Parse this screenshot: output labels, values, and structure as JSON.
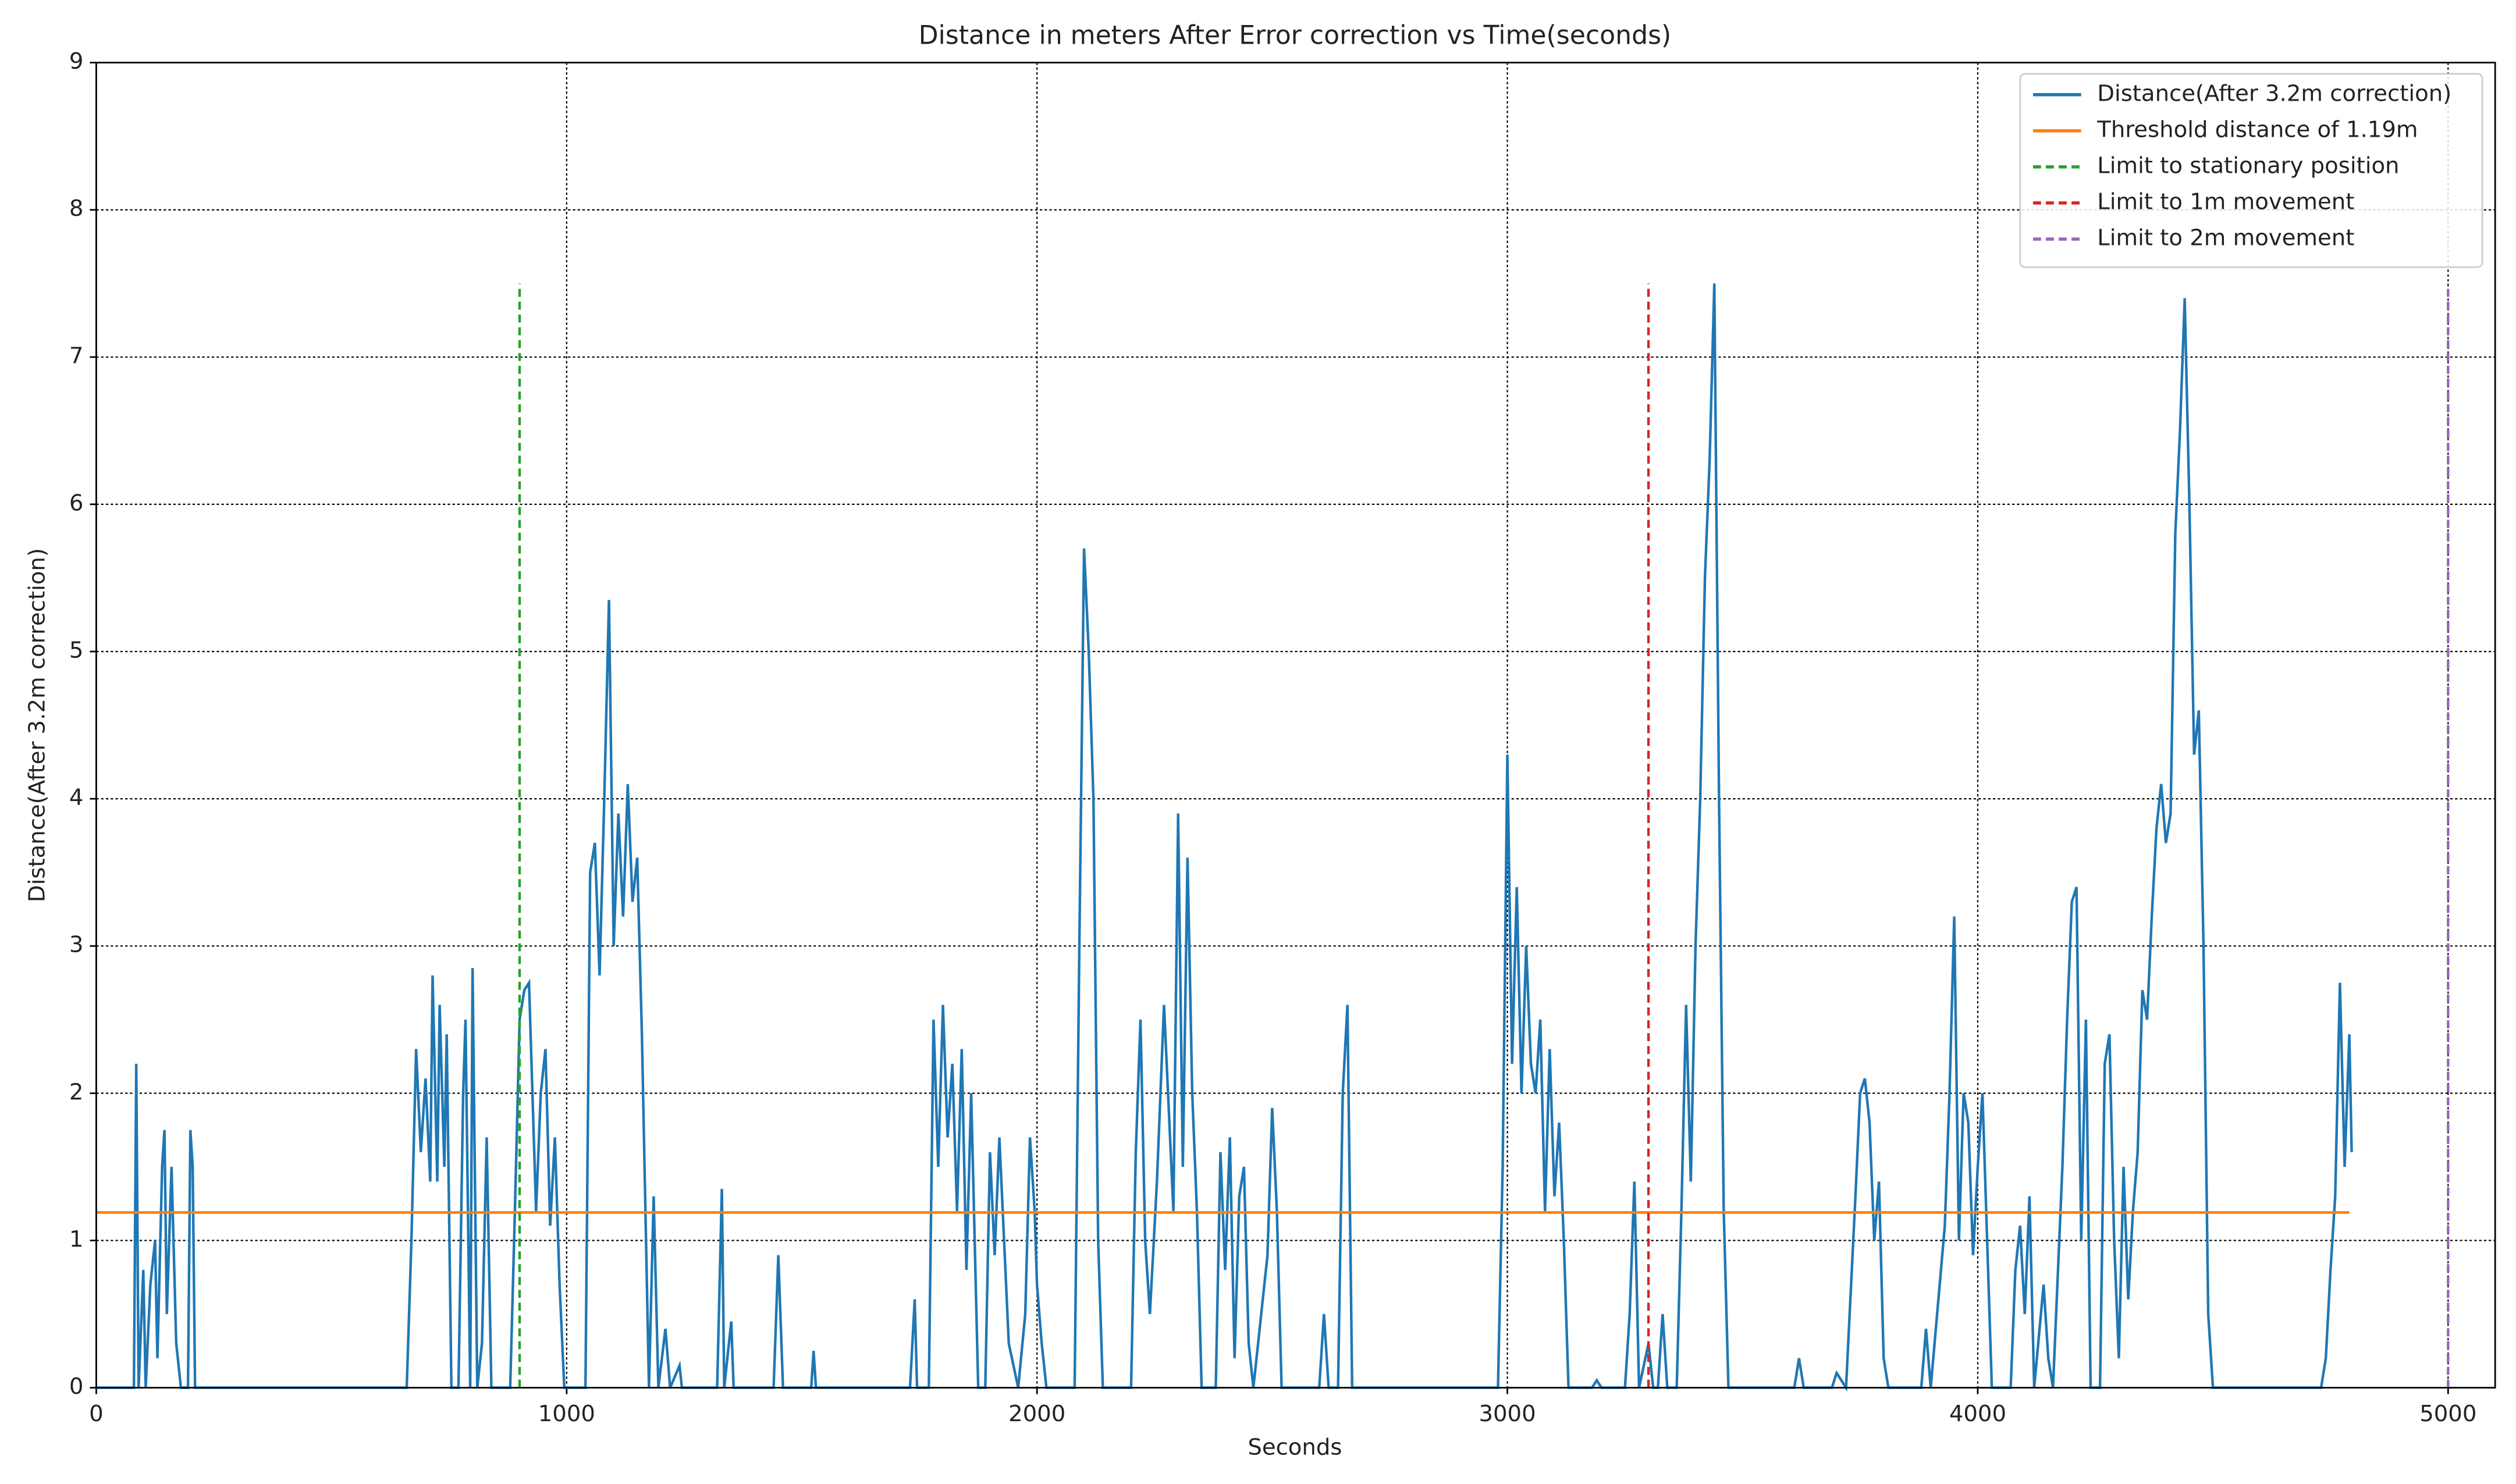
{
  "chart_data": {
    "type": "line",
    "title": "Distance in meters After Error correction vs Time(seconds)",
    "xlabel": "Seconds",
    "ylabel": "Distance(After 3.2m correction)",
    "xlim": [
      0,
      5100
    ],
    "ylim": [
      0,
      9
    ],
    "xticks": [
      0,
      1000,
      2000,
      3000,
      4000,
      5000
    ],
    "yticks": [
      0,
      1,
      2,
      3,
      4,
      5,
      6,
      7,
      8,
      9
    ],
    "grid": true,
    "legend": "upper right",
    "series": [
      {
        "name": "Distance(After 3.2m correction)",
        "color": "#1f77b4",
        "dash": false,
        "x": [
          0,
          80,
          85,
          90,
          100,
          105,
          115,
          125,
          130,
          140,
          145,
          150,
          160,
          170,
          180,
          195,
          200,
          205,
          210,
          660,
          670,
          680,
          690,
          700,
          710,
          715,
          725,
          730,
          740,
          745,
          755,
          770,
          780,
          785,
          795,
          800,
          810,
          820,
          830,
          840,
          860,
          880,
          890,
          900,
          910,
          920,
          935,
          945,
          955,
          965,
          975,
          985,
          995,
          1040,
          1050,
          1060,
          1070,
          1080,
          1090,
          1100,
          1110,
          1120,
          1130,
          1140,
          1150,
          1160,
          1175,
          1185,
          1195,
          1210,
          1220,
          1240,
          1245,
          1320,
          1330,
          1335,
          1350,
          1355,
          1440,
          1450,
          1460,
          1520,
          1525,
          1530,
          1730,
          1740,
          1745,
          1770,
          1780,
          1790,
          1800,
          1810,
          1820,
          1830,
          1840,
          1850,
          1860,
          1875,
          1890,
          1900,
          1910,
          1920,
          1930,
          1940,
          1960,
          1975,
          1985,
          1995,
          2000,
          2010,
          2020,
          2080,
          2090,
          2100,
          2110,
          2120,
          2130,
          2140,
          2200,
          2210,
          2220,
          2230,
          2240,
          2255,
          2270,
          2290,
          2300,
          2310,
          2320,
          2330,
          2340,
          2350,
          2380,
          2390,
          2400,
          2410,
          2420,
          2430,
          2440,
          2450,
          2460,
          2490,
          2500,
          2510,
          2520,
          2600,
          2610,
          2620,
          2640,
          2650,
          2660,
          2670,
          2980,
          2990,
          3000,
          3010,
          3020,
          3030,
          3040,
          3050,
          3060,
          3070,
          3080,
          3090,
          3100,
          3110,
          3120,
          3130,
          3180,
          3190,
          3200,
          3250,
          3260,
          3270,
          3280,
          3300,
          3310,
          3320,
          3330,
          3340,
          3360,
          3370,
          3380,
          3390,
          3400,
          3410,
          3420,
          3430,
          3440,
          3450,
          3460,
          3470,
          3610,
          3620,
          3630,
          3690,
          3700,
          3720,
          3740,
          3750,
          3760,
          3770,
          3780,
          3790,
          3800,
          3810,
          3880,
          3890,
          3900,
          3930,
          3940,
          3950,
          3960,
          3970,
          3980,
          3990,
          4000,
          4010,
          4020,
          4030,
          4070,
          4080,
          4090,
          4100,
          4110,
          4120,
          4140,
          4150,
          4160,
          4180,
          4190,
          4200,
          4210,
          4220,
          4230,
          4240,
          4260,
          4270,
          4280,
          4290,
          4300,
          4310,
          4320,
          4330,
          4340,
          4350,
          4360,
          4370,
          4380,
          4390,
          4400,
          4410,
          4420,
          4430,
          4440,
          4450,
          4460,
          4470,
          4480,
          4490,
          4500,
          4730,
          4740,
          4750,
          4760,
          4770,
          4780,
          4790,
          4795
        ],
        "values": [
          0,
          0,
          2.2,
          0,
          0.8,
          0,
          0.7,
          1.0,
          0.2,
          1.5,
          1.75,
          0.5,
          1.5,
          0.3,
          0,
          0,
          1.75,
          1.5,
          0,
          0,
          1.0,
          2.3,
          1.6,
          2.1,
          1.4,
          2.8,
          1.4,
          2.6,
          1.5,
          2.4,
          0,
          0,
          2.0,
          2.5,
          0,
          2.85,
          0,
          0.3,
          1.7,
          0,
          0,
          0,
          1.2,
          2.5,
          2.7,
          2.75,
          1.2,
          2.0,
          2.3,
          1.1,
          1.7,
          0.7,
          0,
          0,
          3.5,
          3.7,
          2.8,
          4.0,
          5.35,
          3.0,
          3.9,
          3.2,
          4.1,
          3.3,
          3.6,
          2.4,
          0,
          1.3,
          0,
          0.4,
          0,
          0.15,
          0,
          0,
          1.35,
          0,
          0.45,
          0,
          0,
          0.9,
          0,
          0,
          0.25,
          0,
          0,
          0.6,
          0,
          0,
          2.5,
          1.5,
          2.6,
          1.7,
          2.2,
          1.2,
          2.3,
          0.8,
          2.0,
          0,
          0,
          1.6,
          0.9,
          1.7,
          1.0,
          0.3,
          0,
          0.5,
          1.7,
          1.2,
          0.7,
          0.3,
          0,
          0,
          3.0,
          5.7,
          5.0,
          4.0,
          1.0,
          0,
          0,
          1.6,
          2.5,
          1.0,
          0.5,
          1.4,
          2.6,
          1.2,
          3.9,
          1.5,
          3.6,
          2.0,
          1.2,
          0,
          0,
          1.6,
          0.8,
          1.7,
          0.2,
          1.3,
          1.5,
          0.3,
          0,
          0.9,
          1.9,
          1.2,
          0,
          0,
          0.5,
          0,
          0,
          2.0,
          2.6,
          0,
          0,
          1.5,
          4.3,
          2.2,
          3.4,
          2.0,
          3.0,
          2.2,
          2.0,
          2.5,
          1.2,
          2.3,
          1.3,
          1.8,
          1.0,
          0,
          0,
          0.05,
          0,
          0,
          0.5,
          1.4,
          0,
          0.3,
          0,
          0,
          0.5,
          0,
          0,
          1.2,
          2.6,
          1.4,
          3.0,
          4.0,
          5.5,
          6.3,
          7.5,
          4.0,
          1.2,
          0,
          0,
          0.2,
          0,
          0,
          0.1,
          0,
          1.3,
          2.0,
          2.1,
          1.8,
          1.0,
          1.4,
          0.2,
          0,
          0,
          0.4,
          0,
          1.1,
          2.0,
          3.2,
          1.0,
          2.0,
          1.8,
          0.9,
          1.5,
          2.0,
          1.0,
          0,
          0,
          0.8,
          1.1,
          0.5,
          1.3,
          0,
          0.7,
          0.2,
          0,
          1.5,
          2.5,
          3.3,
          3.4,
          1.0,
          2.5,
          0,
          0,
          2.2,
          2.4,
          1.0,
          0.2,
          1.5,
          0.6,
          1.2,
          1.6,
          2.7,
          2.5,
          3.2,
          3.8,
          4.1,
          3.7,
          3.9,
          5.8,
          6.5,
          7.4,
          6.0,
          4.3,
          4.6,
          3.0,
          0.5,
          0,
          0,
          0.2,
          0.8,
          1.3,
          2.75,
          1.5,
          2.4,
          1.6
        ]
      },
      {
        "name": "Threshold distance of 1.19m",
        "color": "#ff7f0e",
        "dash": false,
        "x": [
          0,
          4790
        ],
        "values": [
          1.19,
          1.19
        ]
      },
      {
        "name": "Limit to stationary position",
        "color": "#2ca02c",
        "dash": true,
        "x": [
          900,
          900
        ],
        "values": [
          0,
          7.5
        ]
      },
      {
        "name": "Limit to 1m movement",
        "color": "#d62728",
        "dash": true,
        "x": [
          3300,
          3300
        ],
        "values": [
          0,
          7.5
        ]
      },
      {
        "name": "Limit to 2m movement",
        "color": "#9467bd",
        "dash": true,
        "x": [
          5000,
          5000
        ],
        "values": [
          0,
          7.5
        ]
      }
    ]
  }
}
